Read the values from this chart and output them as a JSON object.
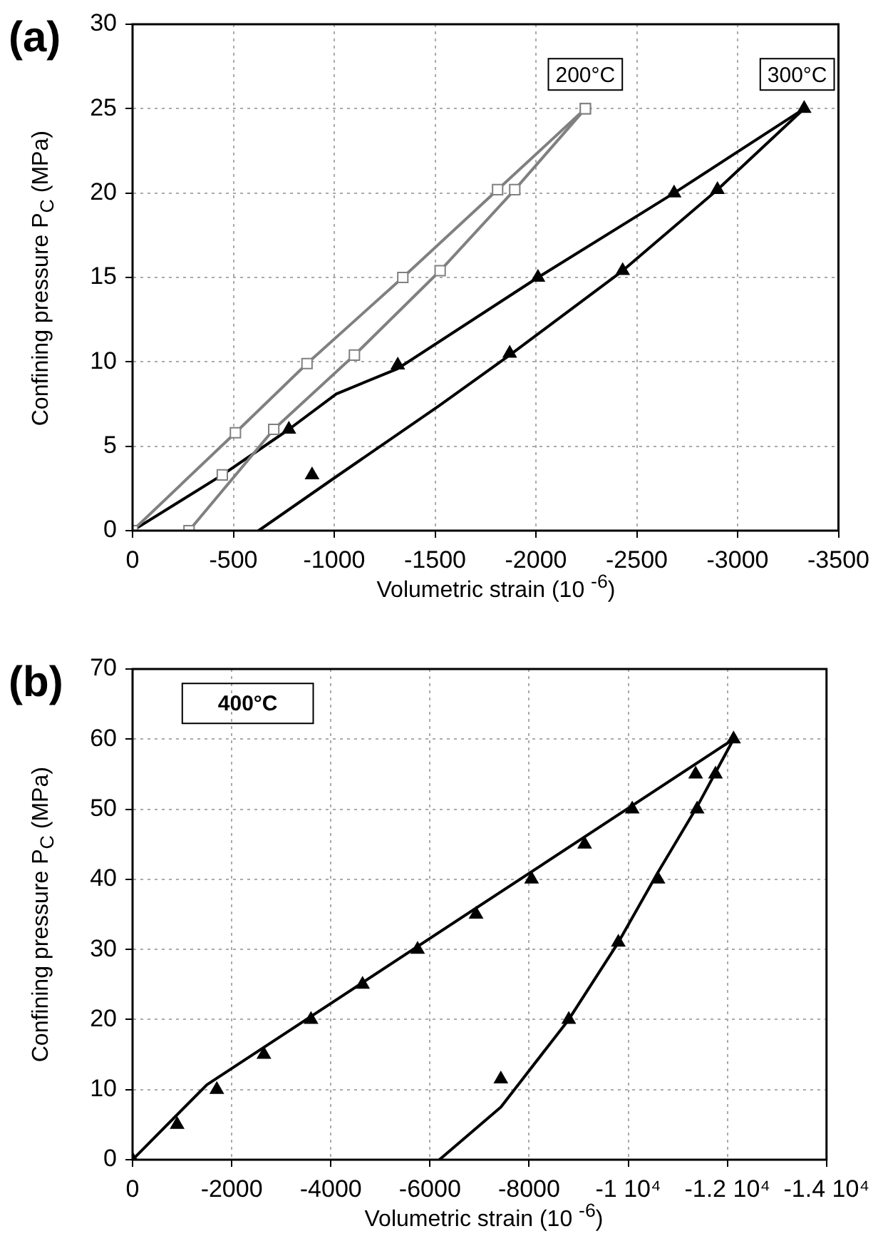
{
  "chart_data": [
    {
      "type": "line",
      "title": "(a)",
      "xlabel": "Volumetric strain (10 $^{-6}$)",
      "ylabel": "Confining pressure P$_{C}$  (MPa)",
      "xlim": [
        0,
        -3500
      ],
      "xticks": [
        0,
        -500,
        -1000,
        -1500,
        -2000,
        -2500,
        -3000,
        -3500
      ],
      "ylim": [
        0,
        30
      ],
      "yticks": [
        0,
        5,
        10,
        15,
        20,
        25,
        30
      ],
      "grid": true,
      "line_style": "solid",
      "series": [
        {
          "name": "200°C",
          "type": "line",
          "marker": "square",
          "color": "#808080",
          "x": [
            0,
            -510,
            -865,
            -1340,
            -1810,
            -2245
          ],
          "values": [
            0,
            5.8,
            9.9,
            15,
            20.2,
            25
          ]
        },
        {
          "type": "line",
          "marker": "square",
          "color": "#808080",
          "x": [
            -2245,
            -1895,
            -1525,
            -1100,
            -700,
            -280
          ],
          "values": [
            25,
            20.2,
            15.4,
            10.4,
            6,
            0
          ]
        },
        {
          "type": "scatter",
          "marker": "square",
          "color": "#808080",
          "x": [
            -445
          ],
          "values": [
            3.3
          ]
        },
        {
          "type": "line",
          "marker": "none",
          "color": "#000000",
          "x": [
            0,
            -445,
            -775,
            -1010,
            -1315,
            -2010,
            -2685,
            -3330
          ],
          "values": [
            0,
            3.3,
            6,
            8.1,
            9.6,
            15,
            20,
            25
          ]
        },
        {
          "type": "line",
          "marker": "none",
          "color": "#000000",
          "x": [
            -625,
            -1010,
            -1520,
            -1870,
            -2430,
            -2900,
            -3330
          ],
          "values": [
            0,
            3.2,
            7.4,
            10.4,
            15.4,
            20.2,
            25
          ]
        },
        {
          "name": "300°C",
          "type": "scatter",
          "marker": "triangle",
          "color": "#000000",
          "x": [
            -775,
            -890,
            -1315,
            -1870,
            -2010,
            -2430,
            -2685,
            -2900,
            -3330
          ],
          "values": [
            6,
            3.3,
            9.8,
            10.5,
            15,
            15.4,
            20,
            20.2,
            25
          ]
        }
      ]
    },
    {
      "type": "line",
      "title": "(b)",
      "xlabel": "Volumetric strain (10 $^{-6}$)",
      "ylabel": "Confining pressure P$_{C}$  (MPa)",
      "xlim": [
        0,
        -14000
      ],
      "xticks": [
        0,
        -2000,
        -4000,
        -6000,
        -8000,
        {
          "value": -10000,
          "label": "-1 10⁴"
        },
        {
          "value": -12000,
          "label": "-1.2 10⁴"
        },
        {
          "value": -14000,
          "label": "-1.4 10⁴"
        }
      ],
      "ylim": [
        0,
        70
      ],
      "yticks": [
        0,
        10,
        20,
        30,
        40,
        50,
        60,
        70
      ],
      "grid": true,
      "line_style": "solid",
      "annotations": [
        "400°C"
      ],
      "series": [
        {
          "type": "line",
          "marker": "none",
          "color": "#000000",
          "x": [
            0,
            -1500,
            -12125
          ],
          "values": [
            0,
            10.7,
            60
          ]
        },
        {
          "type": "line",
          "marker": "none",
          "color": "#000000",
          "x": [
            -6190,
            -7430,
            -8800,
            -9800,
            -10600,
            -11400,
            -12125
          ],
          "values": [
            0,
            7.5,
            20,
            31,
            41,
            50.5,
            60
          ]
        },
        {
          "type": "scatter",
          "marker": "triangle",
          "color": "#000000",
          "x": [
            0,
            -900,
            -1700,
            -2650,
            -3600,
            -4640,
            -5750,
            -6930,
            -8050,
            -9120,
            -10080,
            -11360,
            -12125,
            -11760,
            -11390,
            -10600,
            -9800,
            -8800,
            -7430
          ],
          "values": [
            0,
            5,
            10,
            15,
            20,
            25,
            30,
            35,
            40,
            45,
            50,
            55,
            60,
            55,
            50,
            40,
            31,
            20,
            11.5
          ]
        }
      ]
    }
  ]
}
